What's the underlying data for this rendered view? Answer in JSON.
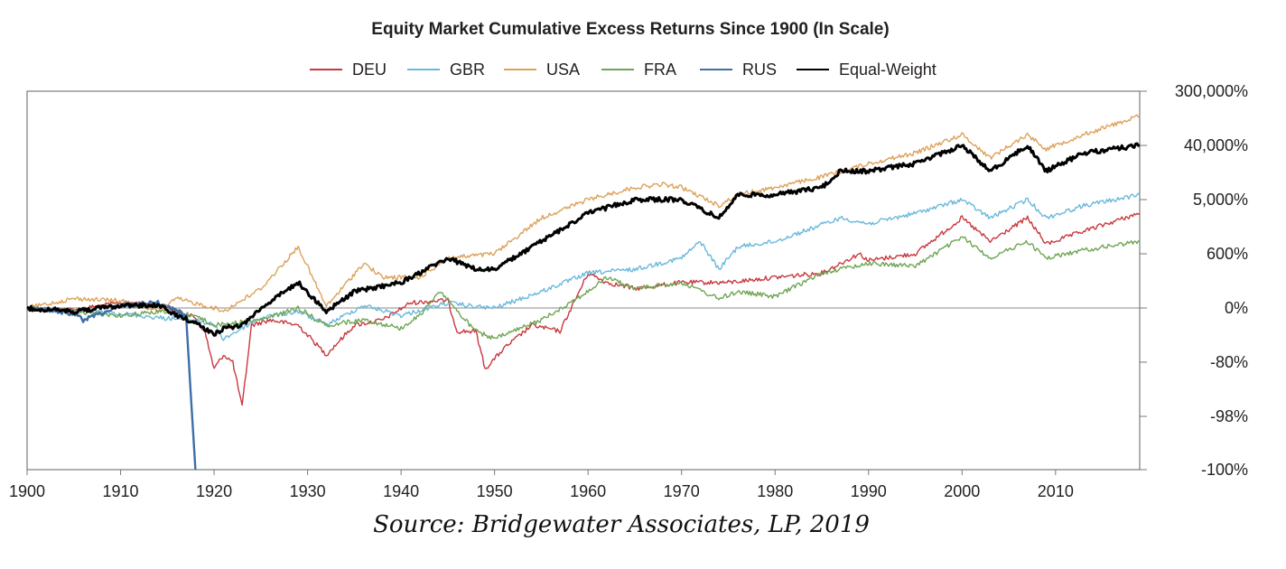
{
  "source": "Source: Bridgewater Associates, LP, 2019",
  "chart_data": {
    "type": "line",
    "title": "Equity Market Cumulative Excess Returns Since 1900 (In Scale)",
    "xlabel": "",
    "ylabel": "",
    "x_ticks": [
      1900,
      1910,
      1920,
      1930,
      1940,
      1950,
      1960,
      1970,
      1980,
      1990,
      2000,
      2010
    ],
    "xlim": [
      1900,
      2019
    ],
    "y_scale": "log-wealth",
    "y_ticks": [
      "300,000%",
      "40,000%",
      "5,000%",
      "600%",
      "0%",
      "-80%",
      "-98%",
      "-100%"
    ],
    "y_axis_position": "right",
    "legend_position": "top",
    "grid": false,
    "series": [
      {
        "name": "DEU",
        "color": "#c8393f",
        "x": [
          1900,
          1905,
          1910,
          1914,
          1918,
          1919,
          1920,
          1921,
          1922,
          1923,
          1924,
          1926,
          1929,
          1932,
          1935,
          1938,
          1941,
          1944,
          1945,
          1946,
          1948,
          1949,
          1951,
          1954,
          1957,
          1960,
          1962,
          1965,
          1970,
          1975,
          1980,
          1985,
          1989,
          1990,
          1995,
          2000,
          2003,
          2007,
          2009,
          2013,
          2019
        ],
        "y": [
          0,
          -5,
          20,
          15,
          -25,
          -50,
          -85,
          -75,
          -80,
          -97,
          -40,
          -30,
          -40,
          -75,
          -40,
          -30,
          20,
          30,
          30,
          -50,
          -50,
          -85,
          -70,
          -40,
          -50,
          250,
          150,
          100,
          150,
          150,
          200,
          250,
          600,
          450,
          600,
          2500,
          1000,
          2500,
          900,
          1500,
          3000
        ]
      },
      {
        "name": "GBR",
        "color": "#6ab8dc",
        "x": [
          1900,
          1905,
          1910,
          1914,
          1918,
          1920,
          1921,
          1925,
          1929,
          1932,
          1936,
          1940,
          1945,
          1948,
          1950,
          1955,
          1960,
          1965,
          1970,
          1972,
          1974,
          1976,
          1980,
          1987,
          1990,
          1995,
          2000,
          2003,
          2007,
          2009,
          2013,
          2019
        ],
        "y": [
          0,
          -10,
          -15,
          -25,
          -30,
          -40,
          -60,
          -25,
          -10,
          -40,
          10,
          -20,
          20,
          5,
          0,
          80,
          250,
          300,
          500,
          1000,
          300,
          800,
          1000,
          2500,
          2000,
          3000,
          5000,
          2500,
          5000,
          2500,
          4000,
          6000
        ]
      },
      {
        "name": "USA",
        "color": "#dda15a",
        "x": [
          1900,
          1905,
          1910,
          1914,
          1916,
          1920,
          1921,
          1925,
          1929,
          1932,
          1936,
          1938,
          1942,
          1945,
          1950,
          1955,
          1960,
          1965,
          1968,
          1970,
          1974,
          1976,
          1980,
          1985,
          1990,
          1995,
          2000,
          2003,
          2007,
          2009,
          2013,
          2019
        ],
        "y": [
          0,
          40,
          30,
          -10,
          40,
          0,
          -10,
          100,
          800,
          5,
          400,
          200,
          200,
          500,
          600,
          2500,
          5000,
          8000,
          9000,
          8000,
          4000,
          6000,
          8000,
          12000,
          20000,
          30000,
          60000,
          25000,
          60000,
          35000,
          60000,
          120000
        ]
      },
      {
        "name": "FRA",
        "color": "#6ea553",
        "x": [
          1900,
          1905,
          1910,
          1914,
          1918,
          1920,
          1925,
          1929,
          1932,
          1936,
          1940,
          1942,
          1944,
          1945,
          1946,
          1948,
          1950,
          1955,
          1960,
          1962,
          1965,
          1970,
          1974,
          1976,
          1980,
          1985,
          1990,
          1995,
          2000,
          2003,
          2007,
          2009,
          2013,
          2019
        ],
        "y": [
          0,
          -10,
          -20,
          -10,
          -20,
          -40,
          -30,
          0,
          -40,
          -30,
          -45,
          -20,
          80,
          40,
          -10,
          -50,
          -60,
          -30,
          80,
          200,
          100,
          150,
          40,
          80,
          50,
          250,
          400,
          350,
          1200,
          500,
          1000,
          500,
          700,
          1000
        ]
      },
      {
        "name": "RUS",
        "color": "#3d6ea8",
        "x": [
          1900,
          1905,
          1906,
          1910,
          1914,
          1916,
          1917,
          1918
        ],
        "y": [
          0,
          -15,
          -30,
          10,
          20,
          -10,
          -20,
          -100
        ]
      },
      {
        "name": "Equal-Weight",
        "color": "#000000",
        "x": [
          1900,
          1905,
          1910,
          1914,
          1916,
          1918,
          1920,
          1921,
          1923,
          1925,
          1929,
          1932,
          1935,
          1940,
          1945,
          1948,
          1950,
          1955,
          1960,
          1965,
          1970,
          1974,
          1976,
          1980,
          1985,
          1987,
          1990,
          1995,
          2000,
          2003,
          2007,
          2009,
          2013,
          2019
        ],
        "y": [
          0,
          -10,
          10,
          10,
          -20,
          -35,
          -55,
          -45,
          -40,
          0,
          150,
          -10,
          80,
          150,
          500,
          300,
          300,
          1000,
          3000,
          5000,
          5000,
          2500,
          6000,
          6000,
          8000,
          15000,
          15000,
          20000,
          40000,
          15000,
          40000,
          15000,
          30000,
          40000
        ]
      }
    ]
  }
}
